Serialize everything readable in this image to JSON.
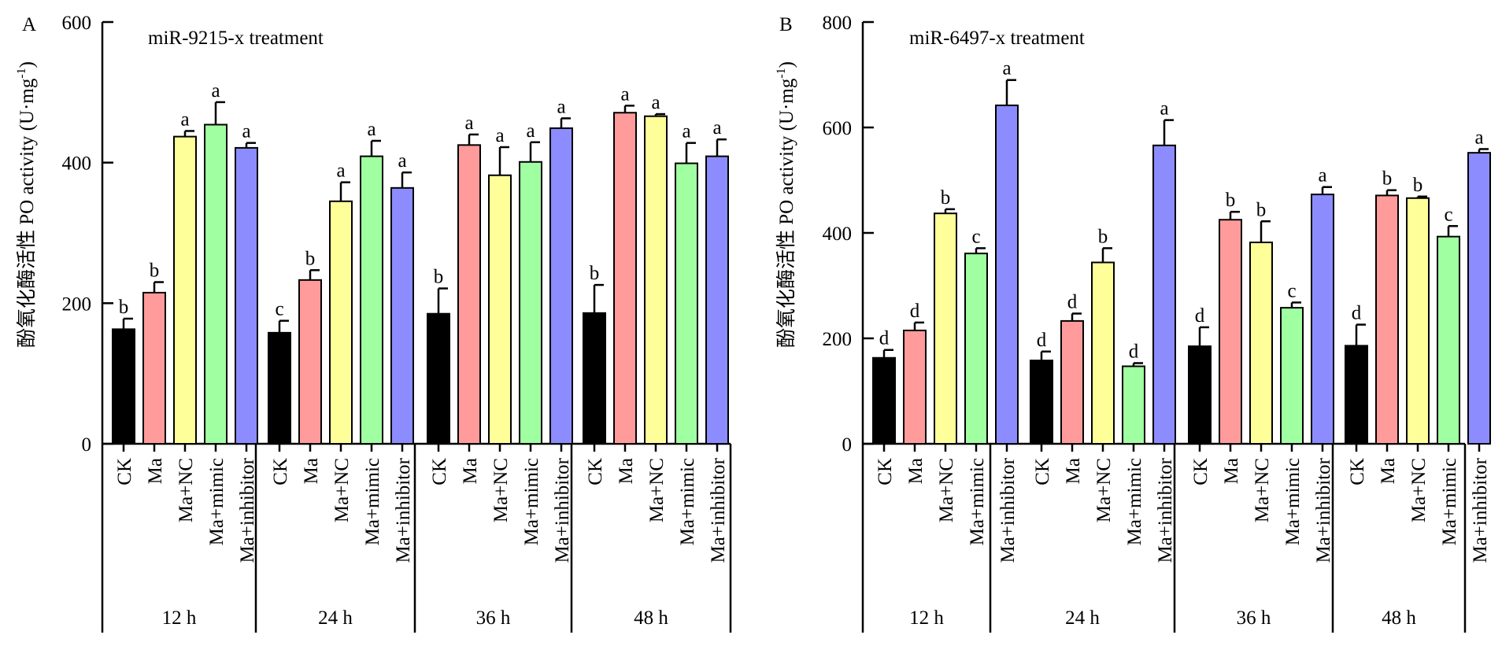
{
  "figure": {
    "panels": [
      {
        "label": "A",
        "treatment": "miR-9215-x treatment"
      },
      {
        "label": "B",
        "treatment": "miR-6497-x treatment"
      }
    ],
    "y_axis_label": "酚氧化酶活性 PO activity (U·mg",
    "y_axis_label_sup": "-1",
    "y_axis_label_close": ")"
  },
  "colors": {
    "CK": "#000000",
    "Ma": "#FF9B9B",
    "Ma+NC": "#FFFF99",
    "Ma+mimic": "#A0FFA0",
    "Ma+inhibitor": "#8C8CFF"
  },
  "chart_data": [
    {
      "type": "bar",
      "title": "miR-9215-x treatment",
      "panel_label": "A",
      "ylabel": "酚氧化酶活性 PO activity (U·mg-1)",
      "ylim": [
        0,
        600
      ],
      "yticks": [
        0,
        200,
        400,
        600
      ],
      "groups": [
        "12 h",
        "24 h",
        "36 h",
        "48 h"
      ],
      "categories": [
        "CK",
        "Ma",
        "Ma+NC",
        "Ma+mimic",
        "Ma+inhibitor"
      ],
      "series": [
        {
          "group": "12 h",
          "values": [
            163,
            215,
            437,
            454,
            421
          ],
          "errors": [
            15,
            15,
            8,
            32,
            7
          ],
          "labels": [
            "b",
            "b",
            "a",
            "a",
            "a"
          ]
        },
        {
          "group": "24 h",
          "values": [
            158,
            233,
            345,
            409,
            364
          ],
          "errors": [
            17,
            14,
            27,
            22,
            22
          ],
          "labels": [
            "c",
            "b",
            "a",
            "a",
            "a"
          ]
        },
        {
          "group": "36 h",
          "values": [
            185,
            425,
            382,
            401,
            449
          ],
          "errors": [
            36,
            15,
            40,
            28,
            14
          ],
          "labels": [
            "b",
            "a",
            "a",
            "a",
            "a"
          ]
        },
        {
          "group": "48 h",
          "values": [
            186,
            471,
            466,
            399,
            409
          ],
          "errors": [
            40,
            10,
            3,
            29,
            24
          ],
          "labels": [
            "b",
            "a",
            "a",
            "a",
            "a"
          ]
        }
      ]
    },
    {
      "type": "bar",
      "title": "miR-6497-x treatment",
      "panel_label": "B",
      "ylabel": "酚氧化酶活性 PO activity (U·mg-1)",
      "ylim": [
        0,
        800
      ],
      "yticks": [
        0,
        200,
        400,
        600,
        800
      ],
      "groups": [
        "12 h",
        "24 h",
        "36 h",
        "48 h"
      ],
      "categories": [
        "CK",
        "Ma",
        "Ma+NC",
        "Ma+mimic",
        "Ma+inhibitor"
      ],
      "series": [
        {
          "group": "12 h",
          "values": [
            163,
            215,
            437,
            361,
            642
          ],
          "errors": [
            15,
            15,
            8,
            10,
            48
          ],
          "labels": [
            "d",
            "d",
            "b",
            "c",
            "a"
          ]
        },
        {
          "group": "24 h",
          "values": [
            158,
            233,
            344,
            147,
            566
          ],
          "errors": [
            17,
            14,
            27,
            6,
            48
          ],
          "labels": [
            "d",
            "d",
            "b",
            "d",
            "a"
          ]
        },
        {
          "group": "36 h",
          "values": [
            185,
            425,
            382,
            258,
            473
          ],
          "errors": [
            36,
            15,
            40,
            10,
            14
          ],
          "labels": [
            "d",
            "b",
            "b",
            "c",
            "a"
          ]
        },
        {
          "group": "48 h",
          "values": [
            186,
            471,
            466,
            393,
            552
          ],
          "errors": [
            40,
            10,
            3,
            20,
            7
          ],
          "labels": [
            "d",
            "b",
            "b",
            "c",
            "a"
          ]
        }
      ]
    }
  ]
}
